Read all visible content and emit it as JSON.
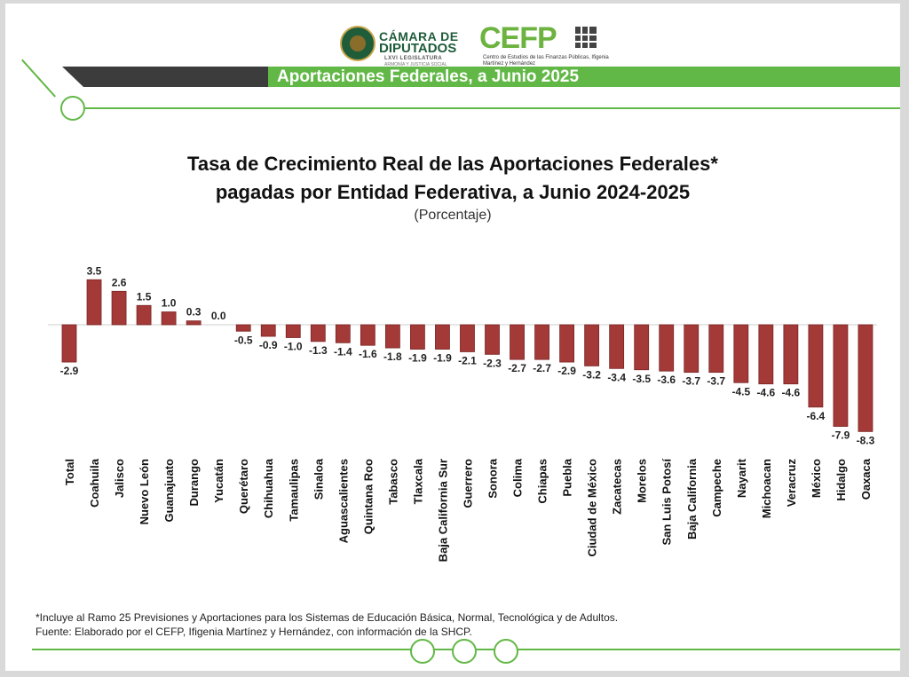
{
  "header": {
    "camara_line1": "CÁMARA DE",
    "camara_line2": "DIPUTADOS",
    "camara_line3": "LXVI LEGISLATURA",
    "camara_line4": "ARMONÍA Y JUSTICIA SOCIAL",
    "cefp_name": "CEFP",
    "cefp_subtitle": "Centro de Estudios de las Finanzas Públicas, Ifigenia Martínez y Hernández",
    "banner": "Aportaciones Federales, a Junio 2025"
  },
  "colors": {
    "bar": "#a33a38",
    "bar_dark": "#7a2422",
    "accent_green": "#62b846",
    "banner_dark": "#3c3c3c"
  },
  "chart_data": {
    "type": "bar",
    "title_line1": "Tasa de Crecimiento Real de las Aportaciones Federales*",
    "title_line2": "pagadas por Entidad Federativa, a Junio 2024-2025",
    "subtitle": "(Porcentaje)",
    "categories": [
      "Total",
      "Coahuila",
      "Jalisco",
      "Nuevo León",
      "Guanajuato",
      "Durango",
      "Yucatán",
      "Querétaro",
      "Chihuahua",
      "Tamaulipas",
      "Sinaloa",
      "Aguascalientes",
      "Quintana Roo",
      "Tabasco",
      "Tlaxcala",
      "Baja California Sur",
      "Guerrero",
      "Sonora",
      "Colima",
      "Chiapas",
      "Puebla",
      "Ciudad de México",
      "Zacatecas",
      "Morelos",
      "San Luis Potosí",
      "Baja California",
      "Campeche",
      "Nayarit",
      "Michoacan",
      "Veracruz",
      "México",
      "Hidalgo",
      "Oaxaca"
    ],
    "values": [
      -2.9,
      3.5,
      2.6,
      1.5,
      1.0,
      0.3,
      0.0,
      -0.5,
      -0.9,
      -1.0,
      -1.3,
      -1.4,
      -1.6,
      -1.8,
      -1.9,
      -1.9,
      -2.1,
      -2.3,
      -2.7,
      -2.7,
      -2.9,
      -3.2,
      -3.4,
      -3.5,
      -3.6,
      -3.7,
      -3.7,
      -4.5,
      -4.6,
      -4.6,
      -6.4,
      -7.9,
      -8.3
    ],
    "value_labels": [
      "-2.9",
      "3.5",
      "2.6",
      "1.5",
      "1.0",
      "0.3",
      "0.0",
      "-0.5",
      "-0.9",
      "-1.0",
      "-1.3",
      "-1.4",
      "-1.6",
      "-1.8",
      "-1.9",
      "-1.9",
      "-2.1",
      "-2.3",
      "-2.7",
      "-2.7",
      "-2.9",
      "-3.2",
      "-3.4",
      "-3.5",
      "-3.6",
      "-3.7",
      "-3.7",
      "-4.5",
      "-4.6",
      "-4.6",
      "-6.4",
      "-7.9",
      "-8.3"
    ],
    "ylim": [
      -8.3,
      3.5
    ],
    "grid": false,
    "legend": "none"
  },
  "notes": {
    "footnote": "*Incluye al Ramo 25 Previsiones y Aportaciones para los Sistemas de Educación Básica, Normal, Tecnológica y de Adultos.",
    "source": "Fuente: Elaborado por el CEFP, Ifigenia Martínez y Hernández, con información de la SHCP."
  }
}
